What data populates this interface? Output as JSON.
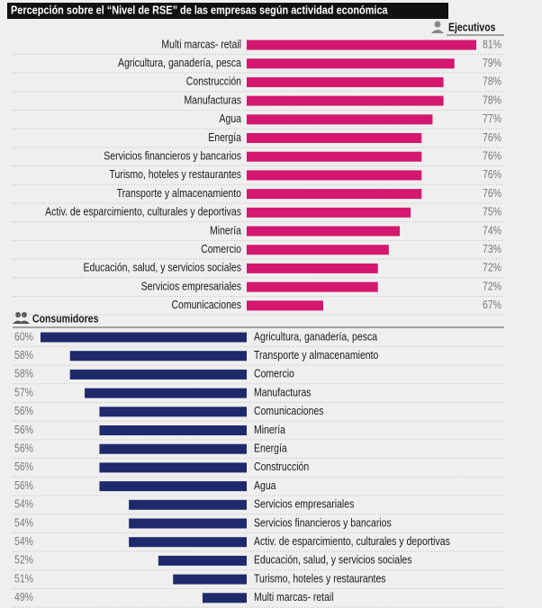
{
  "chart_data": [
    {
      "type": "hbar",
      "title": "Percepción sobre el “Nivel de RSE” de las empresas según actividad económica",
      "series": [
        {
          "name": "Ejecutivos",
          "color": "#d4176f",
          "values": [
            81,
            79,
            78,
            78,
            77,
            76,
            76,
            76,
            76,
            75,
            74,
            73,
            72,
            72,
            67
          ],
          "value_labels": [
            "81%",
            "79%",
            "78%",
            "78%",
            "77%",
            "76%",
            "76%",
            "76%",
            "76%",
            "75%",
            "74%",
            "73%",
            "72%",
            "72%",
            "67%"
          ]
        }
      ],
      "categories": [
        "Multi marcas- retail",
        "Agricultura, ganadería, pesca",
        "Construcción",
        "Manufacturas",
        "Agua",
        "Energía",
        "Servicios financieros y bancarios",
        "Turismo, hoteles y restaurantes",
        "Transporte y almacenamiento",
        "Activ. de esparcimiento, culturales y deportivas",
        "Minería",
        "Comercio",
        "Educación, salud, y servicios sociales",
        "Servicios empresariales",
        "Comunicaciones"
      ],
      "xlim": [
        60,
        81
      ]
    },
    {
      "type": "hbar-left",
      "series": [
        {
          "name": "Consumidores",
          "color": "#1f2a6c",
          "values": [
            60,
            58,
            58,
            57,
            56,
            56,
            56,
            56,
            56,
            54,
            54,
            54,
            52,
            51,
            49
          ],
          "value_labels": [
            "60%",
            "58%",
            "58%",
            "57%",
            "56%",
            "56%",
            "56%",
            "56%",
            "56%",
            "54%",
            "54%",
            "54%",
            "52%",
            "51%",
            "49%"
          ]
        }
      ],
      "categories": [
        "Agricultura, ganadería, pesca",
        "Transporte y almacenamiento",
        "Comercio",
        "Manufacturas",
        "Comunicaciones",
        "Minería",
        "Energía",
        "Construcción",
        "Agua",
        "Servicios empresariales",
        "Servicios financieros y bancarios",
        "Activ. de esparcimiento, culturales y deportivas",
        "Educación, salud, y servicios sociales",
        "Turismo, hoteles y restaurantes",
        "Multi marcas- retail"
      ],
      "xlim": [
        46,
        60
      ]
    }
  ]
}
